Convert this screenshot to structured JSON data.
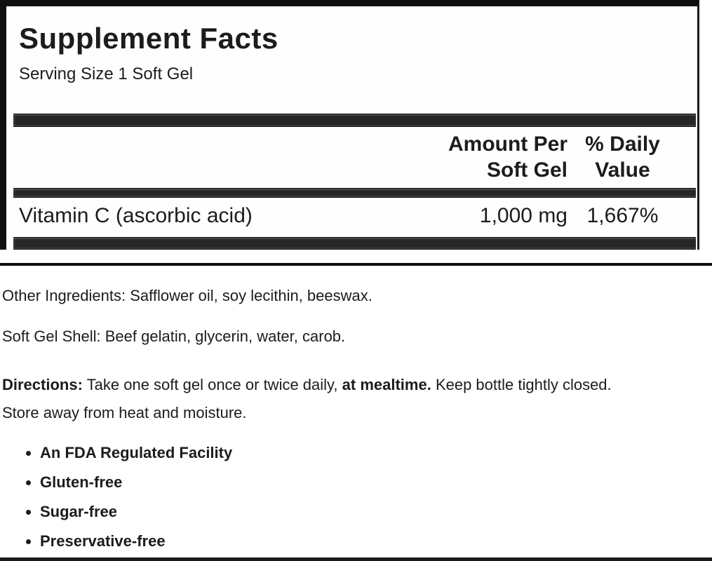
{
  "panel": {
    "title": "Supplement Facts",
    "serving_size": "Serving Size 1 Soft Gel",
    "header": {
      "amount_per_line1": "Amount Per",
      "amount_per_line2": "Soft Gel",
      "daily_value_line1": "% Daily",
      "daily_value_line2": "Value"
    },
    "rows": [
      {
        "nutrient": "Vitamin C (ascorbic acid)",
        "amount": "1,000 mg",
        "daily_value": "1,667%"
      }
    ]
  },
  "sections": {
    "other_ingredients": "Other Ingredients: Safflower oil, soy lecithin, beeswax.",
    "soft_gel_shell": "Soft Gel Shell: Beef gelatin, glycerin, water, carob.",
    "directions": {
      "label": "Directions:",
      "part1": " Take one soft gel once or twice daily, ",
      "emphasis": "at mealtime.",
      "part2": " Keep bottle tightly closed.",
      "line2": "Store away from heat and moisture."
    },
    "features": [
      "An FDA Regulated Facility",
      "Gluten-free",
      "Sugar-free",
      "Preservative-free"
    ]
  },
  "colors": {
    "text": "#1c1c1c",
    "separator_bar": "#262626",
    "panel_border": "#0f0f0f",
    "background": "#ffffff"
  }
}
